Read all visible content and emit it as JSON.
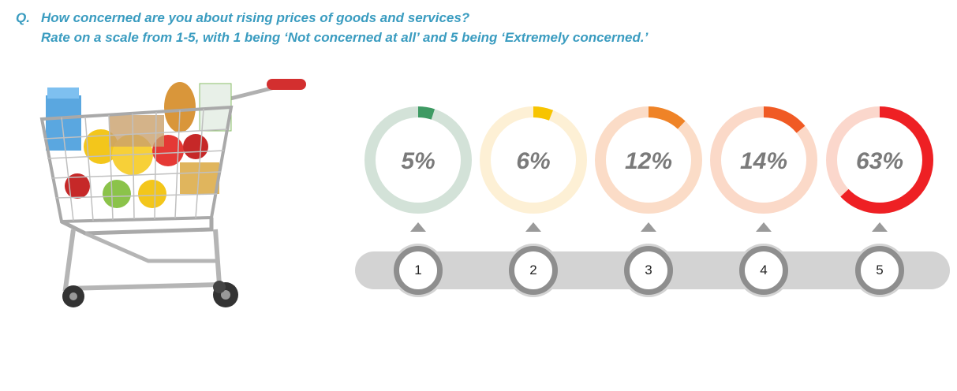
{
  "question": {
    "prefix": "Q.",
    "line1": "How concerned are you about rising prices of goods and services?",
    "line2": "Rate on a scale from 1-5, with 1 being ‘Not concerned at all’ and 5 being ‘Extremely concerned.’"
  },
  "chart_data": {
    "type": "donut",
    "categories": [
      "1",
      "2",
      "3",
      "4",
      "5"
    ],
    "values": [
      5,
      6,
      12,
      14,
      63
    ],
    "labels": [
      "5%",
      "6%",
      "12%",
      "14%",
      "63%"
    ],
    "colors": [
      "#3e9a63",
      "#f7c400",
      "#ef8327",
      "#f05a24",
      "#ee2024"
    ],
    "track_colors": [
      "#d3e2d8",
      "#fdf0d5",
      "#fbdcc7",
      "#fbd9c8",
      "#fbd7cc"
    ]
  },
  "scale": [
    "1",
    "2",
    "3",
    "4",
    "5"
  ]
}
